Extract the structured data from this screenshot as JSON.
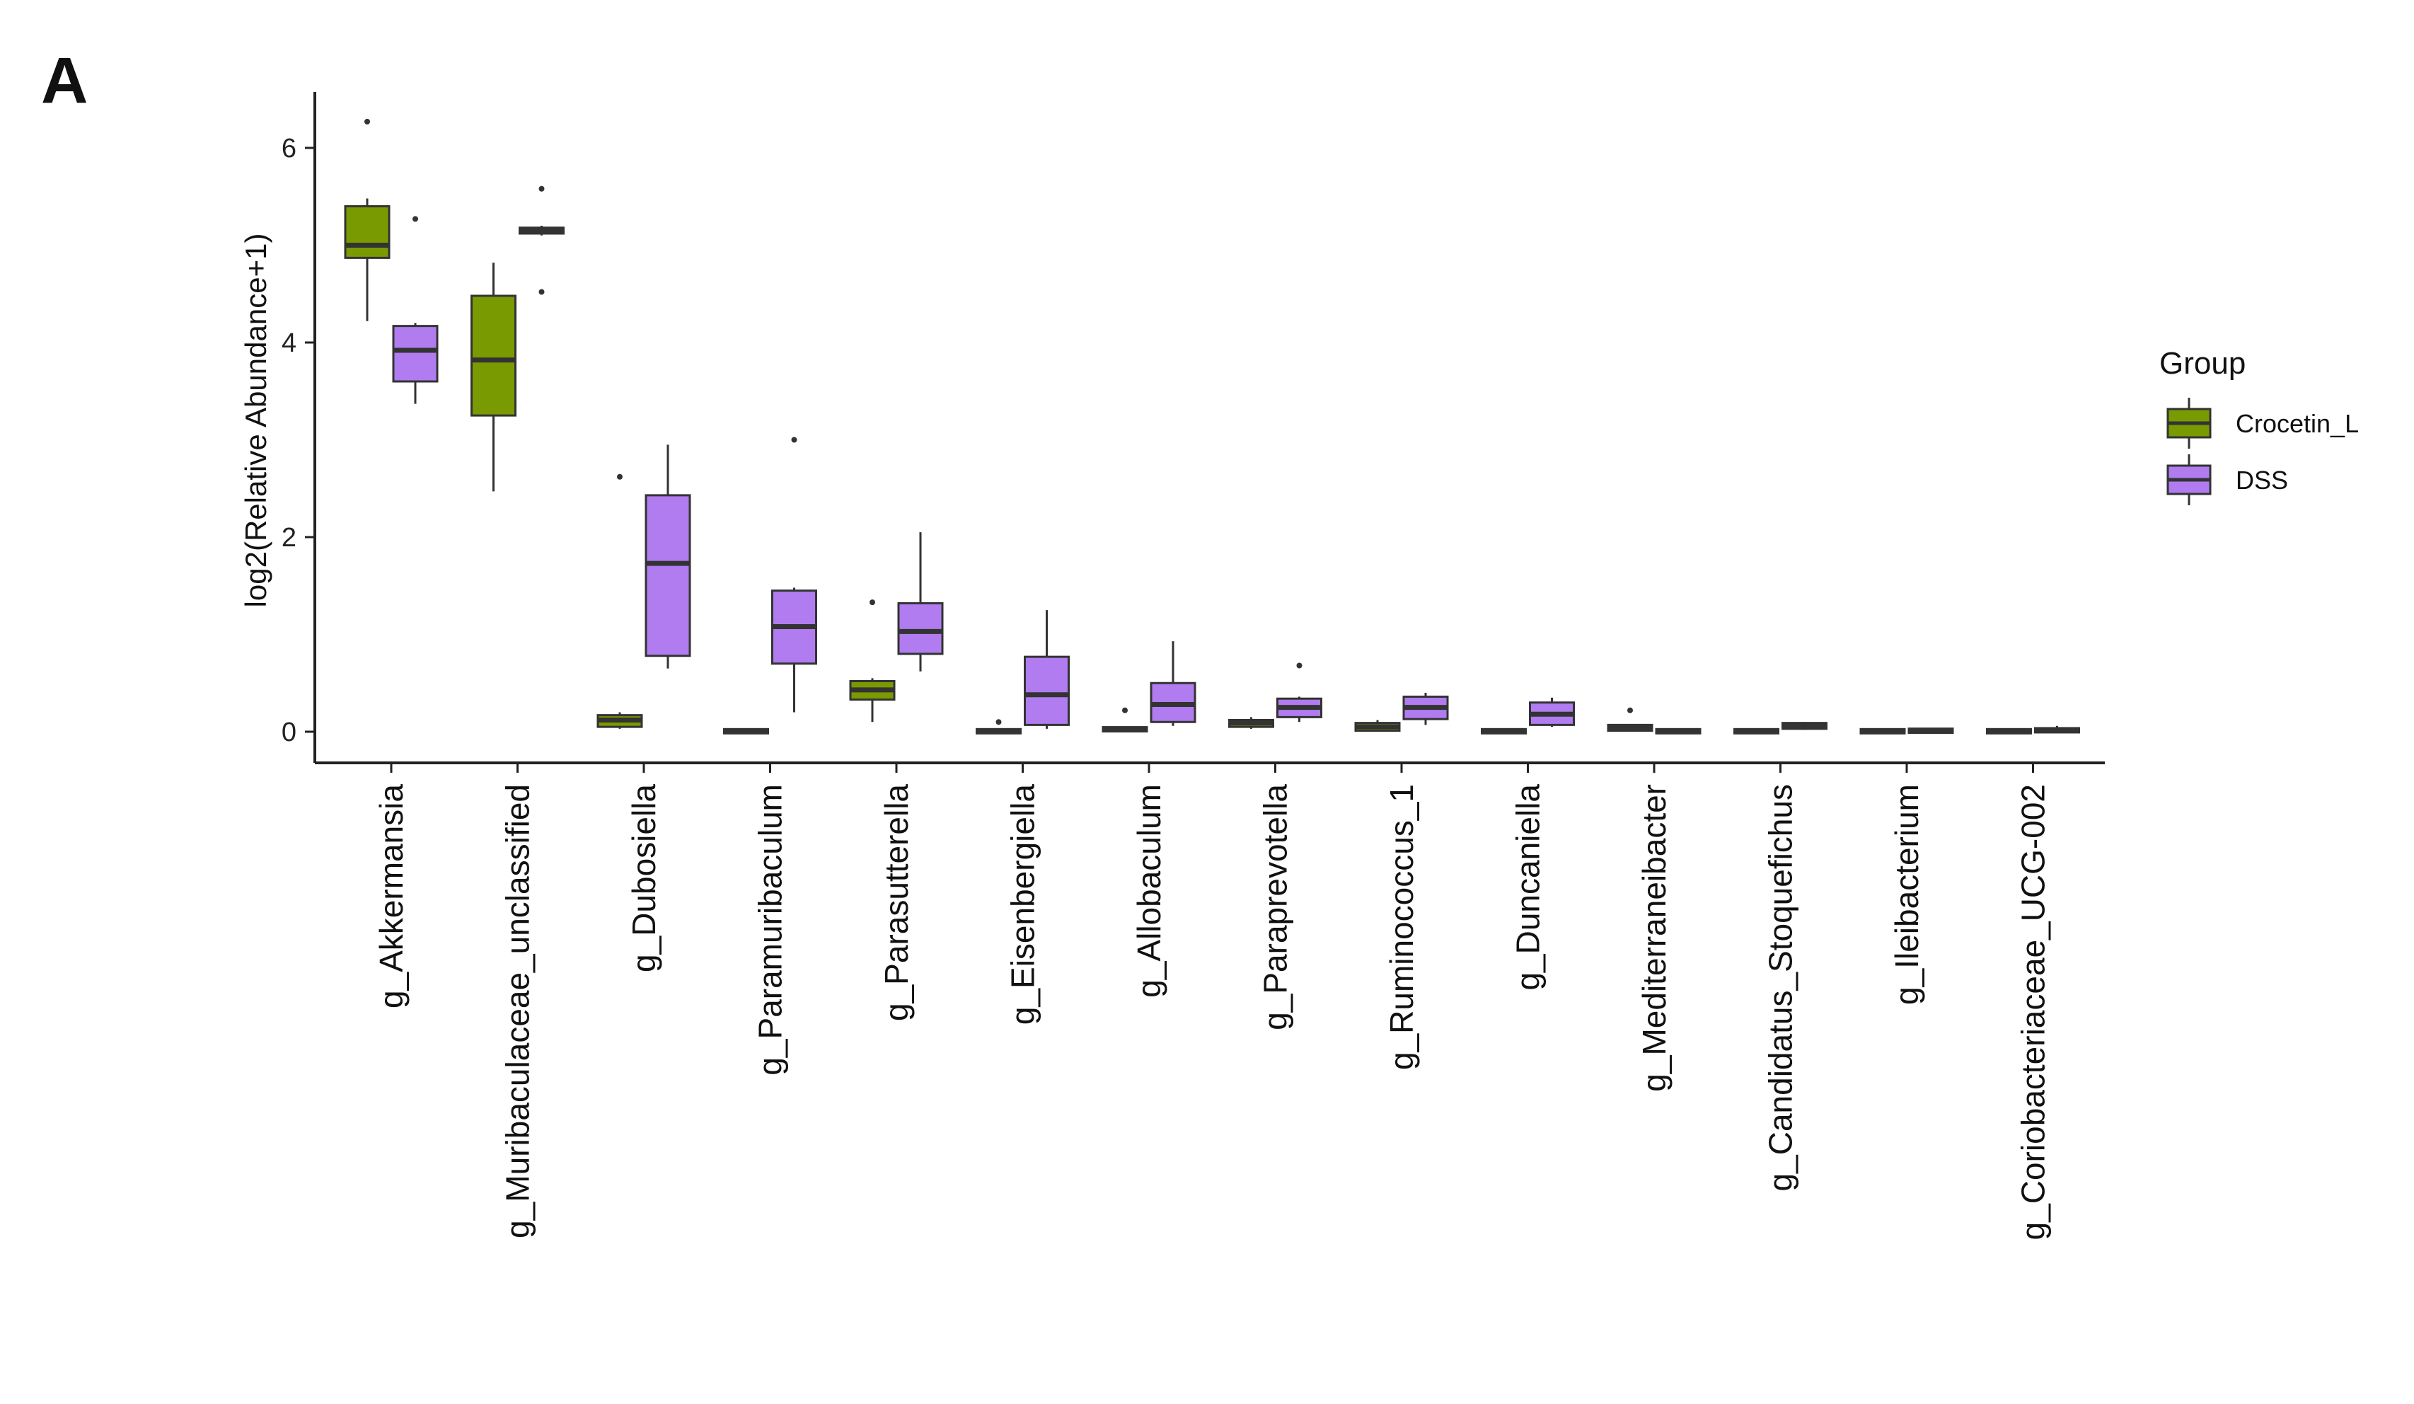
{
  "panel_label": "A",
  "chart_data": {
    "type": "boxplot",
    "title": "",
    "xlabel": "",
    "ylabel": "log2(Relative Abundance+1)",
    "ylim": [
      -0.3,
      6.6
    ],
    "yticks": [
      0,
      2,
      4,
      6
    ],
    "grid": false,
    "legend": {
      "title": "Group",
      "placement": "right"
    },
    "categories": [
      "g_Akkermansia",
      "g_Muribaculaceae_unclassified",
      "g_Dubosiella",
      "g_Paramuribaculum",
      "g_Parasutterella",
      "g_Eisenbergiella",
      "g_Allobaculum",
      "g_Paraprevotella",
      "g_Ruminococcus_1",
      "g_Duncaniella",
      "g_Mediterraneibacter",
      "g_Candidatus_Stoquefichus",
      "g_Ileibacterium",
      "g_Coriobacteriaceae_UCG-002"
    ],
    "series": [
      {
        "name": "Crocetin_L",
        "color": "#7a9a01",
        "boxes": [
          {
            "lower": 4.22,
            "q1": 4.87,
            "median": 5.0,
            "q3": 5.4,
            "upper": 5.48,
            "outliers": [
              6.27
            ]
          },
          {
            "lower": 2.47,
            "q1": 3.25,
            "median": 3.82,
            "q3": 4.48,
            "upper": 4.82,
            "outliers": []
          },
          {
            "lower": 0.03,
            "q1": 0.05,
            "median": 0.12,
            "q3": 0.17,
            "upper": 0.2,
            "outliers": [
              2.62
            ]
          },
          {
            "lower": 0.0,
            "q1": 0.0,
            "median": 0.0,
            "q3": 0.01,
            "upper": 0.01,
            "outliers": []
          },
          {
            "lower": 0.1,
            "q1": 0.33,
            "median": 0.43,
            "q3": 0.52,
            "upper": 0.55,
            "outliers": [
              1.33
            ]
          },
          {
            "lower": 0.0,
            "q1": 0.0,
            "median": 0.0,
            "q3": 0.01,
            "upper": 0.02,
            "outliers": [
              0.1
            ]
          },
          {
            "lower": 0.0,
            "q1": 0.01,
            "median": 0.02,
            "q3": 0.04,
            "upper": 0.05,
            "outliers": [
              0.22
            ]
          },
          {
            "lower": 0.03,
            "q1": 0.05,
            "median": 0.09,
            "q3": 0.12,
            "upper": 0.15,
            "outliers": []
          },
          {
            "lower": 0.0,
            "q1": 0.01,
            "median": 0.05,
            "q3": 0.09,
            "upper": 0.12,
            "outliers": []
          },
          {
            "lower": 0.0,
            "q1": 0.0,
            "median": 0.0,
            "q3": 0.01,
            "upper": 0.01,
            "outliers": []
          },
          {
            "lower": 0.0,
            "q1": 0.01,
            "median": 0.04,
            "q3": 0.07,
            "upper": 0.08,
            "outliers": [
              0.22
            ]
          },
          {
            "lower": 0.0,
            "q1": 0.0,
            "median": 0.0,
            "q3": 0.01,
            "upper": 0.01,
            "outliers": []
          },
          {
            "lower": 0.0,
            "q1": 0.0,
            "median": 0.0,
            "q3": 0.01,
            "upper": 0.01,
            "outliers": []
          },
          {
            "lower": 0.0,
            "q1": 0.0,
            "median": 0.0,
            "q3": 0.01,
            "upper": 0.01,
            "outliers": []
          }
        ]
      },
      {
        "name": "DSS",
        "color": "#b07cf0",
        "boxes": [
          {
            "lower": 3.37,
            "q1": 3.6,
            "median": 3.92,
            "q3": 4.17,
            "upper": 4.2,
            "outliers": [
              5.27
            ]
          },
          {
            "lower": 5.1,
            "q1": 5.12,
            "median": 5.15,
            "q3": 5.18,
            "upper": 5.2,
            "outliers": [
              5.58,
              4.52
            ]
          },
          {
            "lower": 0.65,
            "q1": 0.78,
            "median": 1.73,
            "q3": 2.43,
            "upper": 2.95,
            "outliers": []
          },
          {
            "lower": 0.2,
            "q1": 0.7,
            "median": 1.08,
            "q3": 1.45,
            "upper": 1.48,
            "outliers": [
              3.0
            ]
          },
          {
            "lower": 0.62,
            "q1": 0.8,
            "median": 1.03,
            "q3": 1.32,
            "upper": 2.05,
            "outliers": []
          },
          {
            "lower": 0.03,
            "q1": 0.07,
            "median": 0.38,
            "q3": 0.77,
            "upper": 1.25,
            "outliers": []
          },
          {
            "lower": 0.06,
            "q1": 0.1,
            "median": 0.28,
            "q3": 0.5,
            "upper": 0.93,
            "outliers": []
          },
          {
            "lower": 0.1,
            "q1": 0.15,
            "median": 0.25,
            "q3": 0.34,
            "upper": 0.36,
            "outliers": [
              0.68
            ]
          },
          {
            "lower": 0.07,
            "q1": 0.13,
            "median": 0.25,
            "q3": 0.36,
            "upper": 0.4,
            "outliers": []
          },
          {
            "lower": 0.05,
            "q1": 0.07,
            "median": 0.18,
            "q3": 0.3,
            "upper": 0.35,
            "outliers": []
          },
          {
            "lower": 0.0,
            "q1": 0.0,
            "median": 0.0,
            "q3": 0.01,
            "upper": 0.01,
            "outliers": []
          },
          {
            "lower": 0.02,
            "q1": 0.03,
            "median": 0.06,
            "q3": 0.09,
            "upper": 0.1,
            "outliers": []
          },
          {
            "lower": 0.0,
            "q1": 0.0,
            "median": 0.01,
            "q3": 0.02,
            "upper": 0.04,
            "outliers": []
          },
          {
            "lower": 0.0,
            "q1": 0.0,
            "median": 0.01,
            "q3": 0.03,
            "upper": 0.06,
            "outliers": []
          }
        ]
      }
    ]
  }
}
